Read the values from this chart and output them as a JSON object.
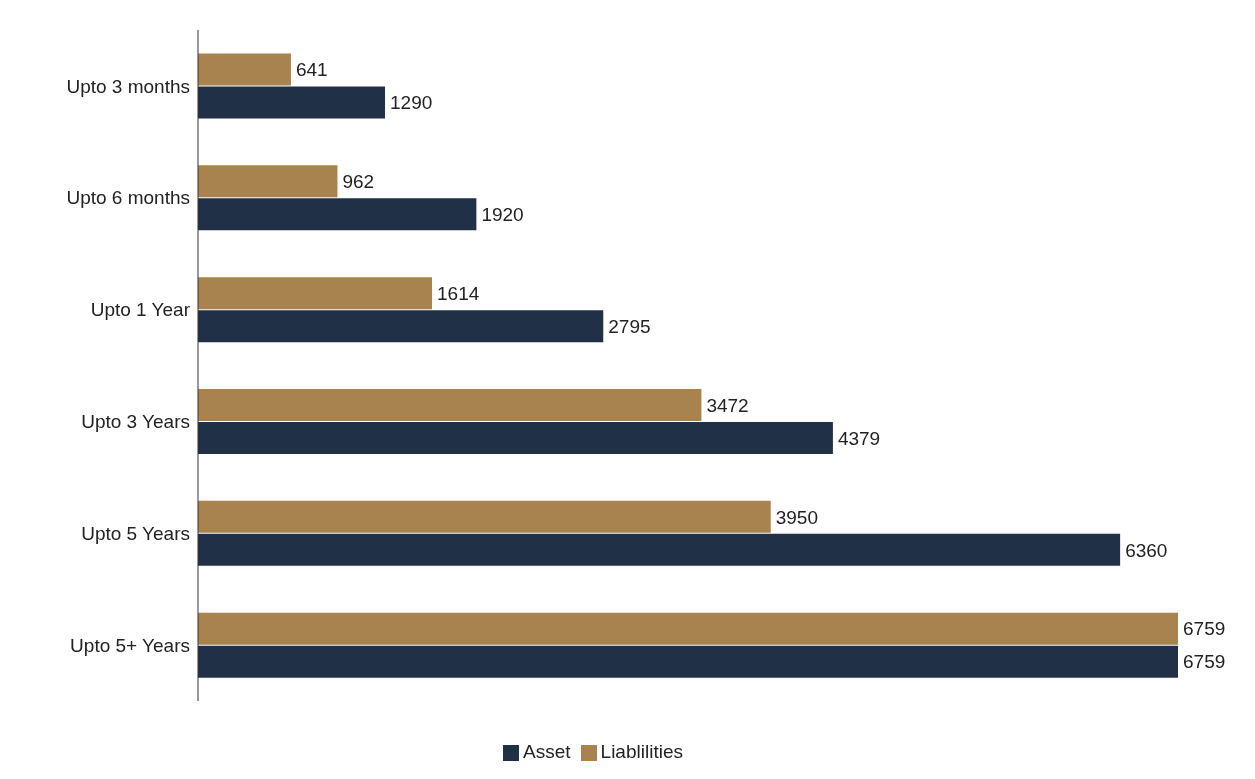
{
  "chart_data": {
    "type": "bar",
    "orientation": "horizontal",
    "categories": [
      "Upto 3 months",
      "Upto 6 months",
      "Upto 1 Year",
      "Upto 3 Years",
      "Upto 5 Years",
      "Upto 5+ Years"
    ],
    "series": [
      {
        "name": "Liablilities",
        "color": "#a8834f",
        "values": [
          641,
          962,
          1614,
          3472,
          3950,
          6759
        ]
      },
      {
        "name": "Asset",
        "color": "#1f3047",
        "values": [
          1290,
          1920,
          2795,
          4379,
          6360,
          6759
        ]
      }
    ],
    "data_labels": true,
    "legend": "bottom",
    "grid": false
  }
}
